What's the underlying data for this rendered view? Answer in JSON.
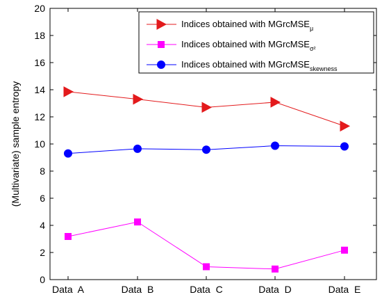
{
  "chart_data": {
    "type": "line",
    "categories": [
      "Data  A",
      "Data  B",
      "Data  C",
      "Data  D",
      "Data  E"
    ],
    "ylabel": "(Multivariate) sample entropy",
    "xlabel": "",
    "title": "",
    "ylim": [
      0,
      20
    ],
    "yticks": [
      0,
      2,
      4,
      6,
      8,
      10,
      12,
      14,
      16,
      18,
      20
    ],
    "grid": false,
    "legend_position": "top-right",
    "series": [
      {
        "name_main": "Indices obtained with MGrcMSE",
        "name_sub": "μ",
        "color": "#e31a1c",
        "marker": "triangle-right",
        "values": [
          13.85,
          13.3,
          12.7,
          13.08,
          11.32
        ]
      },
      {
        "name_main": "Indices obtained with MGrcMSE",
        "name_sub": "σ²",
        "color": "#ff00ff",
        "marker": "square",
        "values": [
          3.18,
          4.25,
          0.95,
          0.78,
          2.17
        ]
      },
      {
        "name_main": "Indices obtained with MGrcMSE",
        "name_sub": "skewness",
        "color": "#0000ff",
        "marker": "circle",
        "values": [
          9.3,
          9.65,
          9.58,
          9.87,
          9.82
        ]
      }
    ]
  }
}
